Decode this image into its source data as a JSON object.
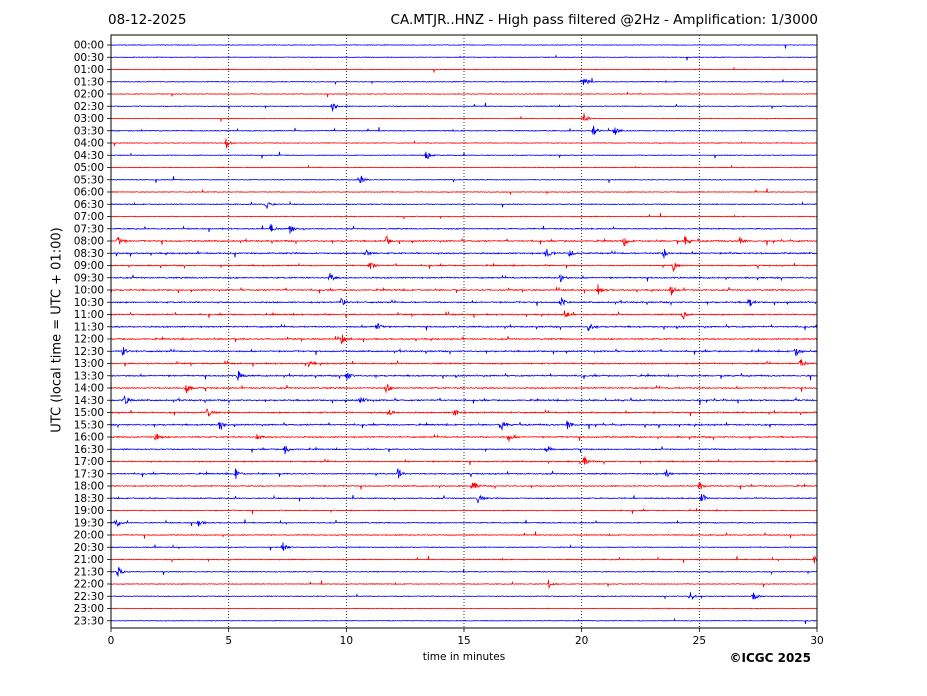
{
  "header": {
    "date": "08-12-2025",
    "title": "CA.MTJR..HNZ - High pass filtered @2Hz - Amplification: 1/3000"
  },
  "footer": {
    "copyright": "©ICGC 2025"
  },
  "chart_data": {
    "type": "line",
    "title": "CA.MTJR..HNZ - High pass filtered @2Hz - Amplification: 1/3000",
    "xlabel": "time in minutes",
    "ylabel": "UTC (local time = UTC + 01:00)",
    "xlim": [
      0,
      30
    ],
    "x_ticks": [
      0,
      5,
      10,
      15,
      20,
      25,
      30
    ],
    "grid": "vertical dotted lines at 5-minute ticks",
    "trace_colors": [
      "#0000ff",
      "#ff0000"
    ],
    "row_labels": [
      "00:00",
      "00:30",
      "01:00",
      "01:30",
      "02:00",
      "02:30",
      "03:00",
      "03:30",
      "04:00",
      "04:30",
      "05:00",
      "05:30",
      "06:00",
      "06:30",
      "07:00",
      "07:30",
      "08:00",
      "08:30",
      "09:00",
      "09:30",
      "10:00",
      "10:30",
      "11:00",
      "11:30",
      "12:00",
      "12:30",
      "13:00",
      "13:30",
      "14:00",
      "14:30",
      "15:00",
      "15:30",
      "16:00",
      "16:30",
      "17:00",
      "17:30",
      "18:00",
      "18:30",
      "19:00",
      "19:30",
      "20:00",
      "20:30",
      "21:00",
      "21:30",
      "22:00",
      "22:30",
      "23:00",
      "23:30"
    ],
    "row_colors": [
      "#0000ff",
      "#0000ff",
      "#ff0000",
      "#0000ff",
      "#ff0000",
      "#0000ff",
      "#ff0000",
      "#0000ff",
      "#ff0000",
      "#0000ff",
      "#ff0000",
      "#0000ff",
      "#ff0000",
      "#0000ff",
      "#ff0000",
      "#0000ff",
      "#ff0000",
      "#0000ff",
      "#ff0000",
      "#0000ff",
      "#ff0000",
      "#0000ff",
      "#ff0000",
      "#0000ff",
      "#ff0000",
      "#0000ff",
      "#ff0000",
      "#0000ff",
      "#ff0000",
      "#0000ff",
      "#ff0000",
      "#0000ff",
      "#ff0000",
      "#0000ff",
      "#ff0000",
      "#0000ff",
      "#ff0000",
      "#0000ff",
      "#ff0000",
      "#0000ff",
      "#ff0000",
      "#0000ff",
      "#ff0000",
      "#0000ff",
      "#ff0000",
      "#0000ff",
      "#ff0000",
      "#0000ff"
    ],
    "row_activity": [
      0.05,
      0.05,
      0.1,
      0.15,
      0.1,
      0.15,
      0.1,
      0.2,
      0.1,
      0.1,
      0.1,
      0.1,
      0.15,
      0.2,
      0.2,
      0.35,
      0.55,
      0.6,
      0.45,
      0.5,
      0.5,
      0.55,
      0.5,
      0.55,
      0.5,
      0.55,
      0.5,
      0.55,
      0.5,
      0.6,
      0.55,
      0.55,
      0.5,
      0.4,
      0.45,
      0.45,
      0.35,
      0.35,
      0.3,
      0.3,
      0.25,
      0.2,
      0.25,
      0.2,
      0.15,
      0.15,
      0.05,
      0.05
    ],
    "events": [
      {
        "row": "01:30",
        "x": 20.1
      },
      {
        "row": "02:30",
        "x": 9.4
      },
      {
        "row": "03:00",
        "x": 20.1
      },
      {
        "row": "03:30",
        "x": 20.5
      },
      {
        "row": "03:30",
        "x": 21.4
      },
      {
        "row": "04:00",
        "x": 4.9
      },
      {
        "row": "04:30",
        "x": 13.4
      },
      {
        "row": "05:30",
        "x": 10.6
      },
      {
        "row": "06:30",
        "x": 6.6
      },
      {
        "row": "07:30",
        "x": 6.8
      },
      {
        "row": "07:30",
        "x": 7.6
      },
      {
        "row": "08:00",
        "x": 0.3
      },
      {
        "row": "08:00",
        "x": 11.7
      },
      {
        "row": "08:00",
        "x": 21.8
      },
      {
        "row": "08:00",
        "x": 24.4
      },
      {
        "row": "08:00",
        "x": 26.7
      },
      {
        "row": "08:30",
        "x": 10.8
      },
      {
        "row": "08:30",
        "x": 18.5
      },
      {
        "row": "08:30",
        "x": 19.5
      },
      {
        "row": "08:30",
        "x": 23.5
      },
      {
        "row": "09:00",
        "x": 11
      },
      {
        "row": "09:00",
        "x": 23.9
      },
      {
        "row": "09:30",
        "x": 9.3
      },
      {
        "row": "09:30",
        "x": 19.1
      },
      {
        "row": "10:00",
        "x": 20.7
      },
      {
        "row": "10:00",
        "x": 23.8
      },
      {
        "row": "10:30",
        "x": 9.8
      },
      {
        "row": "10:30",
        "x": 19.1
      },
      {
        "row": "10:30",
        "x": 27.1
      },
      {
        "row": "11:00",
        "x": 19.3
      },
      {
        "row": "11:00",
        "x": 24.3
      },
      {
        "row": "11:30",
        "x": 11.3
      },
      {
        "row": "11:30",
        "x": 20.3
      },
      {
        "row": "12:00",
        "x": 9.8
      },
      {
        "row": "12:30",
        "x": 0.5
      },
      {
        "row": "12:30",
        "x": 29.1
      },
      {
        "row": "13:00",
        "x": 8.4
      },
      {
        "row": "13:00",
        "x": 29.3
      },
      {
        "row": "13:30",
        "x": 5.4
      },
      {
        "row": "13:30",
        "x": 10
      },
      {
        "row": "14:00",
        "x": 3.2
      },
      {
        "row": "14:00",
        "x": 11.7
      },
      {
        "row": "14:30",
        "x": 0.6
      },
      {
        "row": "14:30",
        "x": 10.6
      },
      {
        "row": "15:00",
        "x": 4.1
      },
      {
        "row": "15:00",
        "x": 11.8
      },
      {
        "row": "15:00",
        "x": 14.6
      },
      {
        "row": "15:30",
        "x": 4.6
      },
      {
        "row": "15:30",
        "x": 16.6
      },
      {
        "row": "15:30",
        "x": 19.4
      },
      {
        "row": "16:00",
        "x": 1.9
      },
      {
        "row": "16:00",
        "x": 6.2
      },
      {
        "row": "16:00",
        "x": 16.9
      },
      {
        "row": "16:30",
        "x": 7.4
      },
      {
        "row": "16:30",
        "x": 18.5
      },
      {
        "row": "17:00",
        "x": 20.1
      },
      {
        "row": "17:30",
        "x": 5.3
      },
      {
        "row": "17:30",
        "x": 12.2
      },
      {
        "row": "17:30",
        "x": 23.6
      },
      {
        "row": "18:00",
        "x": 15.4
      },
      {
        "row": "18:00",
        "x": 25
      },
      {
        "row": "18:30",
        "x": 15.6
      },
      {
        "row": "18:30",
        "x": 25.1
      },
      {
        "row": "19:30",
        "x": 0.2
      },
      {
        "row": "19:30",
        "x": 3.7
      },
      {
        "row": "20:30",
        "x": 7.3
      },
      {
        "row": "21:00",
        "x": 29.9
      },
      {
        "row": "21:30",
        "x": 0.3
      },
      {
        "row": "22:00",
        "x": 18.6
      },
      {
        "row": "22:30",
        "x": 24.6
      },
      {
        "row": "22:30",
        "x": 27.3
      }
    ]
  }
}
